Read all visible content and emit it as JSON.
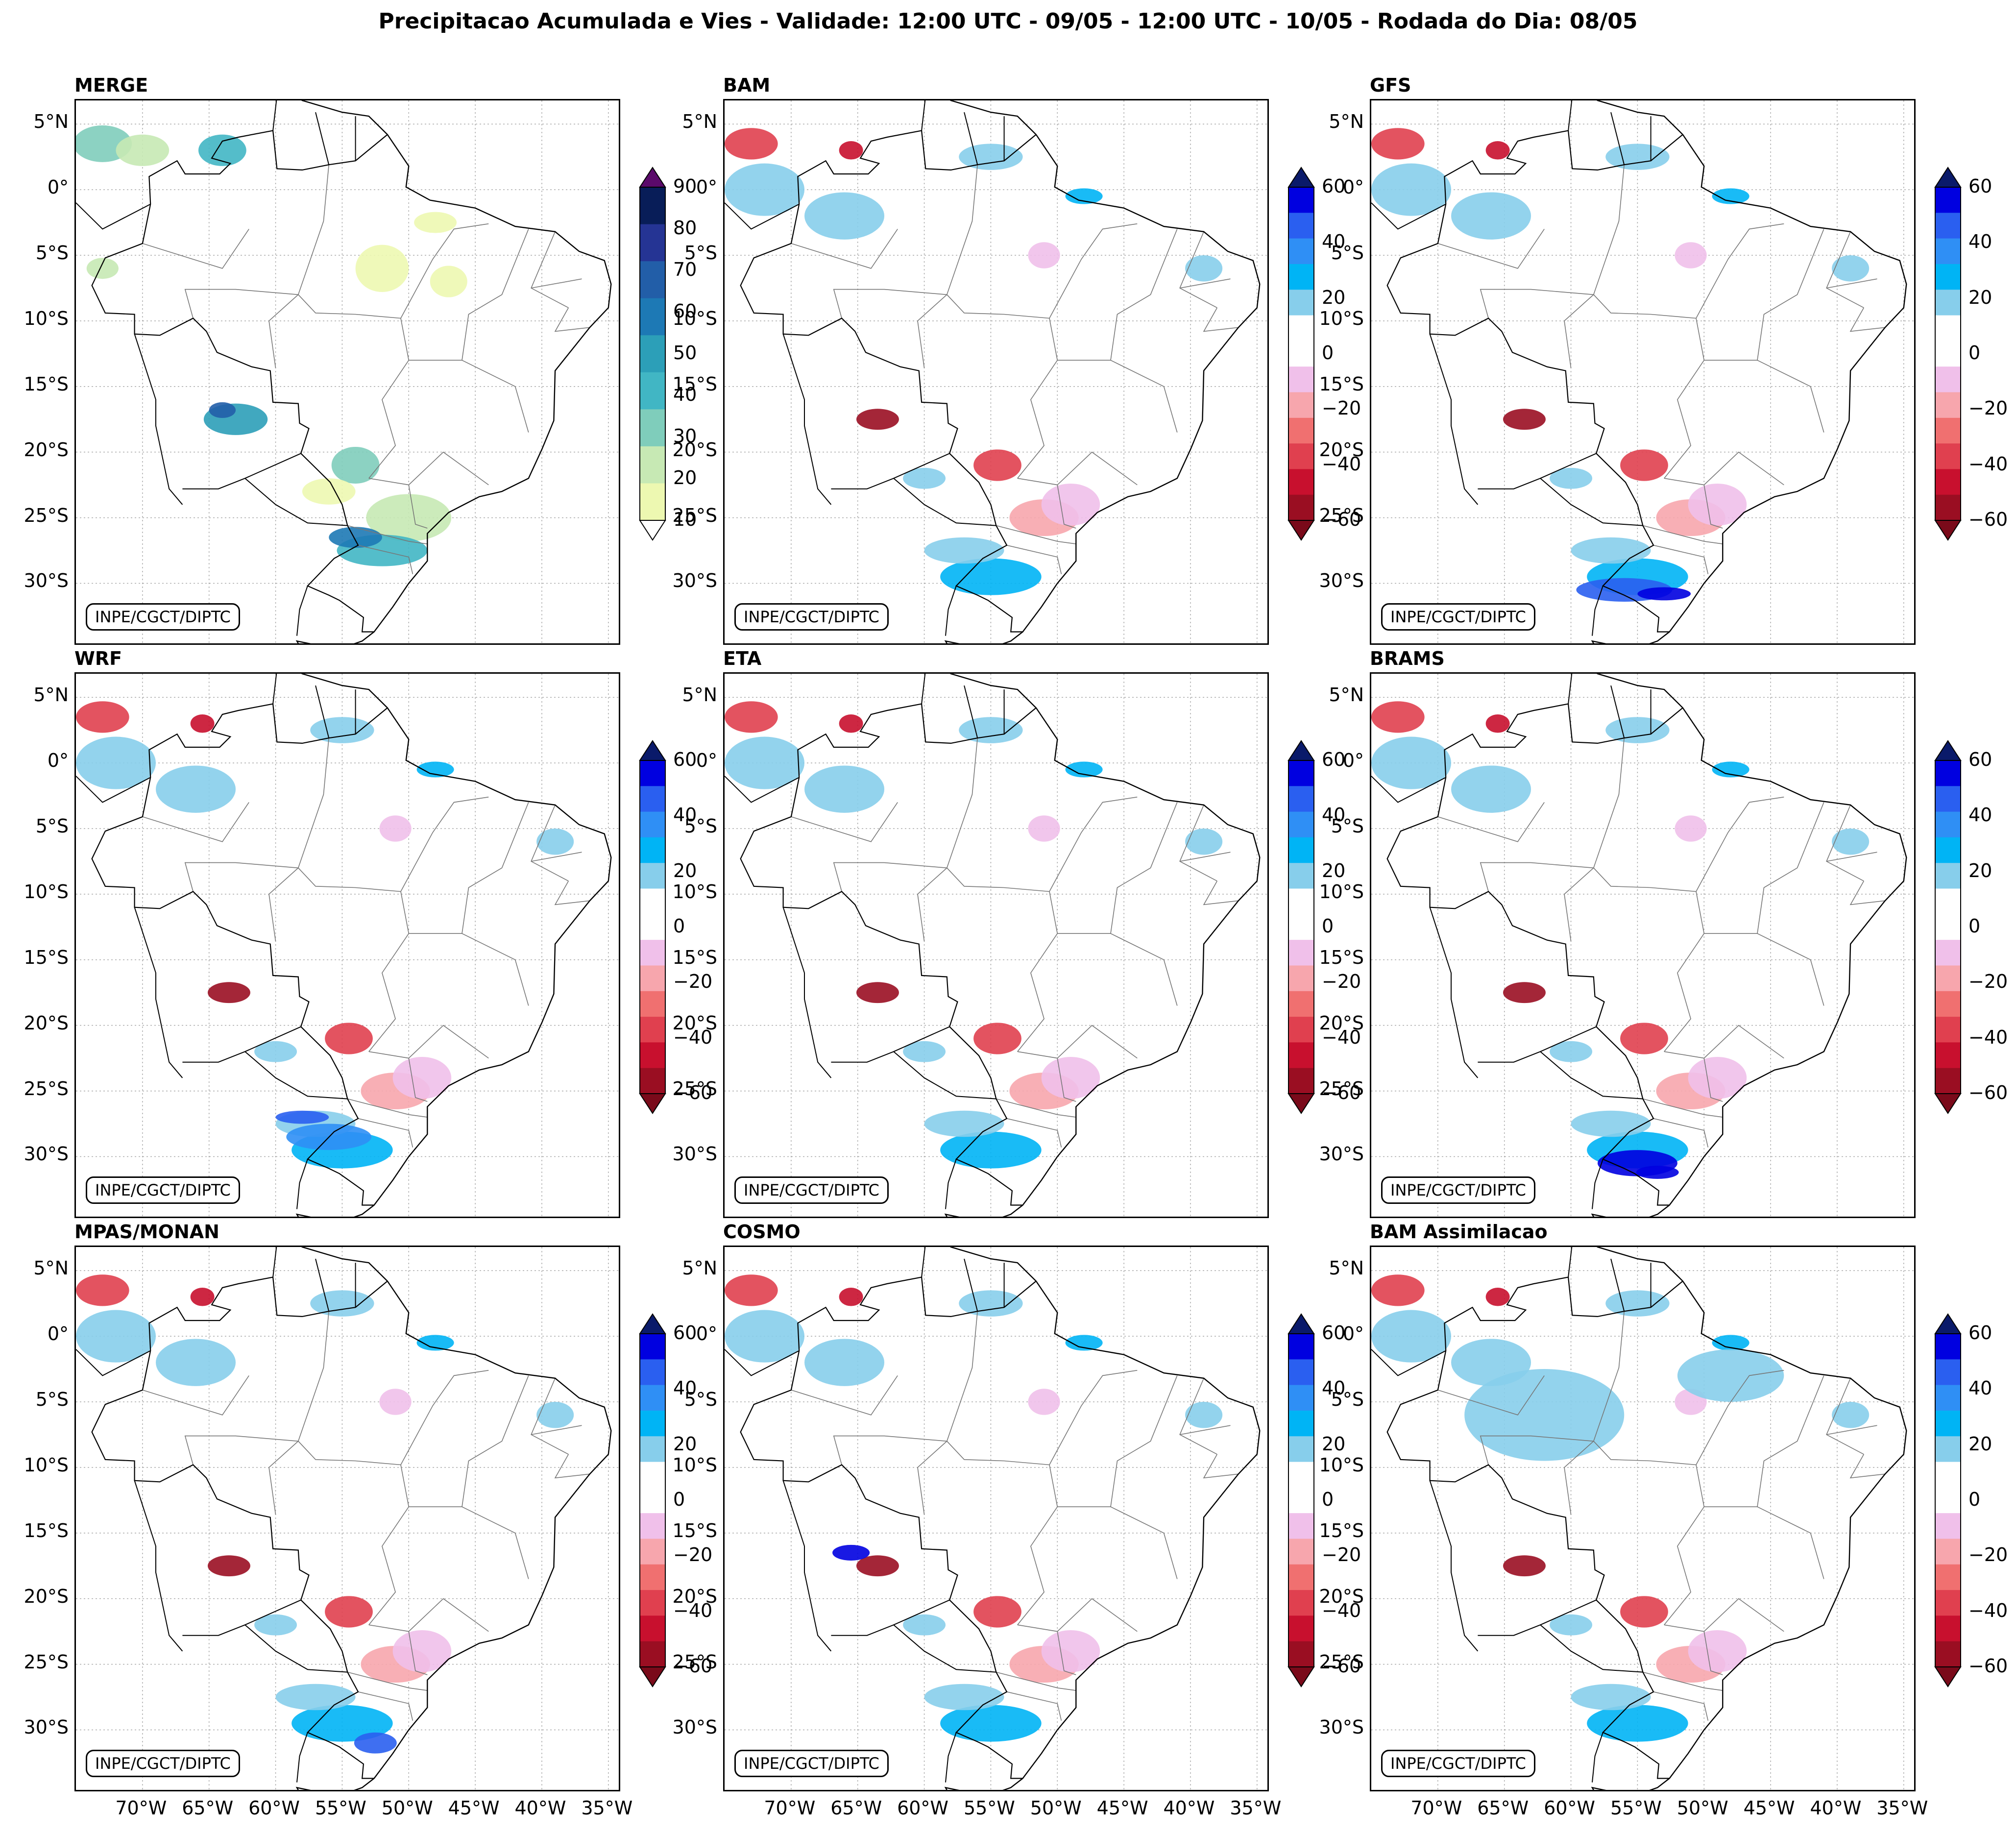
{
  "title": "Precipitacao Acumulada e Vies - Validade: 12:00 UTC - 09/05 - 12:00 UTC - 10/05 - Rodada do Dia: 08/05",
  "credit": "INPE/CGCT/DIPTC",
  "panels": [
    {
      "name": "MERGE",
      "type": "precip"
    },
    {
      "name": "BAM",
      "type": "bias"
    },
    {
      "name": "GFS",
      "type": "bias"
    },
    {
      "name": "WRF",
      "type": "bias"
    },
    {
      "name": "ETA",
      "type": "bias"
    },
    {
      "name": "BRAMS",
      "type": "bias"
    },
    {
      "name": "MPAS/MONAN",
      "type": "bias"
    },
    {
      "name": "COSMO",
      "type": "bias"
    },
    {
      "name": "BAM Assimilacao",
      "type": "bias"
    }
  ],
  "lat_labels": [
    "5°N",
    "0°",
    "5°S",
    "10°S",
    "15°S",
    "20°S",
    "25°S",
    "30°S"
  ],
  "lon_labels": [
    "70°W",
    "65°W",
    "60°W",
    "55°W",
    "50°W",
    "45°W",
    "40°W",
    "35°W"
  ],
  "precip_colorbar": {
    "ticks": [
      "10",
      "20",
      "30",
      "40",
      "50",
      "60",
      "70",
      "80",
      "90"
    ],
    "colors": [
      "#edf8b1",
      "#c7e9b4",
      "#7fcdbb",
      "#41b6c4",
      "#2c9fb8",
      "#1d79b5",
      "#225ea8",
      "#253494",
      "#081d58"
    ],
    "extend_max": "#5b0a6b"
  },
  "bias_colorbar": {
    "ticks": [
      "60",
      "40",
      "20",
      "0",
      "−20",
      "−40",
      "−60"
    ],
    "colors": [
      "#0000e0",
      "#2a5ff0",
      "#2f8ff5",
      "#00b4f5",
      "#87ceeb",
      "#ffffff",
      "#ffffff",
      "#f0c0ea",
      "#f7a6ad",
      "#f07070",
      "#e0404f",
      "#c8102e",
      "#9a0e22"
    ],
    "extend_max": "#0a1a6a",
    "extend_min": "#7a0a1a"
  }
}
